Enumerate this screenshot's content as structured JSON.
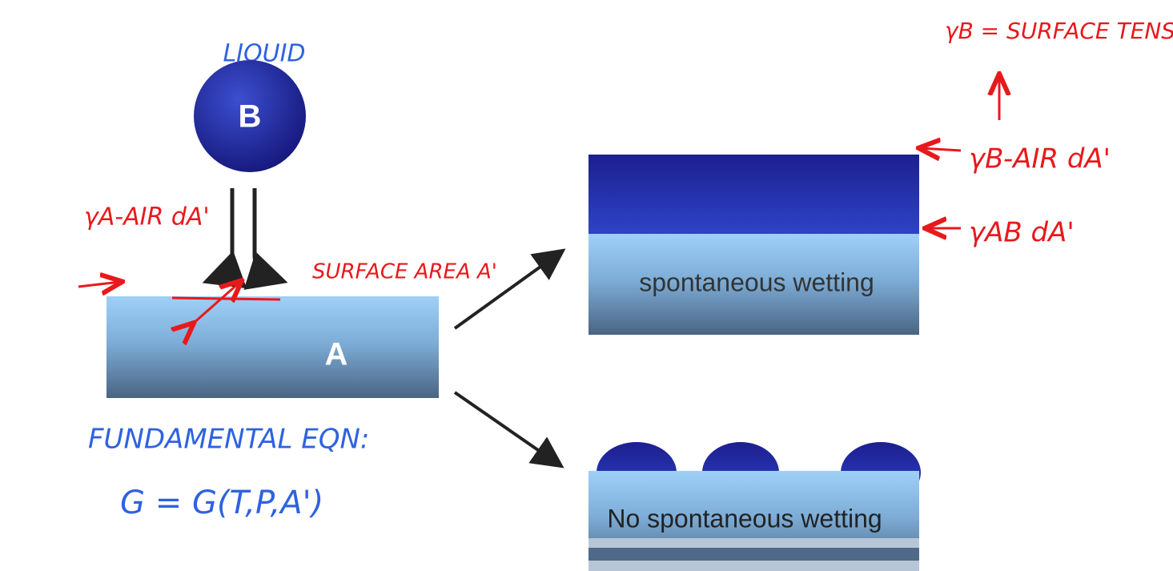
{
  "labels": {
    "liquid": "LIQUID",
    "drop": "B",
    "substrate": "A"
  },
  "outcomes": [
    "spontaneous wetting",
    "No spontaneous wetting"
  ],
  "annotations": {
    "surface_tension": "γB = SURFACE TENSION",
    "gamma_b_air": "γB-AIR dA'",
    "gamma_ab": "γAB dA'",
    "gamma_a_air": "γA-AIR dA'",
    "surface_area": "SURFACE AREA A'"
  },
  "equations": {
    "heading": "FUNDAMENTAL EQN:",
    "first": "G = G(T,P,A')"
  }
}
